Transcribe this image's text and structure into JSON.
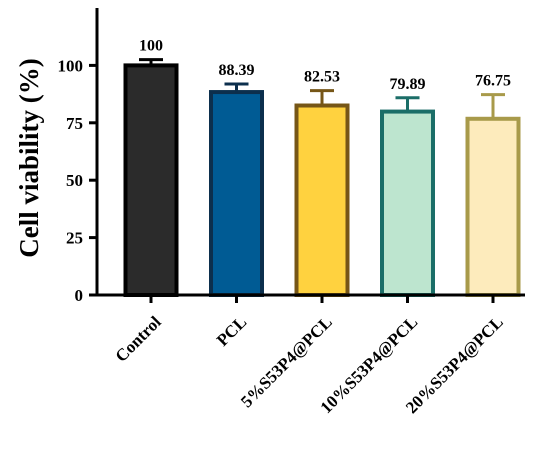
{
  "chart_data": {
    "type": "bar",
    "title": "",
    "xlabel": "",
    "ylabel": "Cell viability (%)",
    "ylim": [
      0,
      125
    ],
    "yticks": [
      0,
      25,
      50,
      75,
      100
    ],
    "grid": false,
    "categories": [
      "Control",
      "PCL",
      "5%S53P4@PCL",
      "10%S53P4@PCL",
      "20%S53P4@PCL"
    ],
    "values": [
      100,
      88.39,
      82.53,
      79.89,
      76.75
    ],
    "errors": [
      2.5,
      3.5,
      6.5,
      6.0,
      10.5
    ],
    "data_labels": [
      "100",
      "88.39",
      "82.53",
      "79.89",
      "76.75"
    ],
    "fill_colors": [
      "#2b2b2b",
      "#005b94",
      "#ffd23f",
      "#bde5cf",
      "#fdebbc"
    ],
    "edge_colors": [
      "#000000",
      "#0c2f4d",
      "#765617",
      "#1b6e68",
      "#a89a4a"
    ]
  }
}
